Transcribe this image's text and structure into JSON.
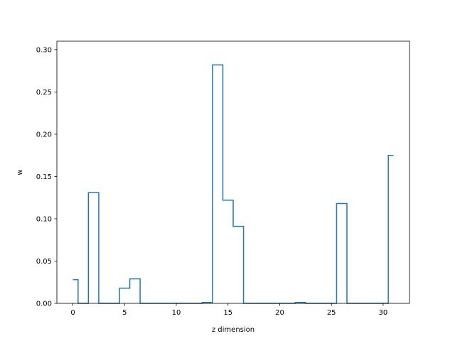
{
  "chart_data": {
    "type": "line",
    "drawstyle": "steps-mid",
    "xlabel": "z dimension",
    "ylabel": "w",
    "xlim": [
      -1.55,
      32.55
    ],
    "ylim": [
      0.0,
      0.31
    ],
    "xticks": [
      0,
      5,
      10,
      15,
      20,
      25,
      30
    ],
    "yticks": [
      0.0,
      0.05,
      0.1,
      0.15,
      0.2,
      0.25,
      0.3
    ],
    "ytick_labels": [
      "0.00",
      "0.05",
      "0.10",
      "0.15",
      "0.20",
      "0.25",
      "0.30"
    ],
    "grid": false,
    "color": "#1f77b4",
    "series": [
      {
        "x": [
          0,
          1,
          2,
          3,
          4,
          5,
          6,
          7,
          8,
          9,
          10,
          11,
          12,
          13,
          14,
          15,
          16,
          17,
          18,
          19,
          20,
          21,
          22,
          23,
          24,
          25,
          26,
          27,
          28,
          29,
          30,
          31
        ],
        "values": [
          0.028,
          0.0,
          0.131,
          0.0,
          0.0,
          0.018,
          0.029,
          0.0,
          0.0,
          0.0,
          0.0,
          0.0,
          0.0,
          0.001,
          0.282,
          0.122,
          0.091,
          0.0,
          0.0,
          0.0,
          0.0,
          0.0,
          0.001,
          0.0,
          0.0,
          0.0,
          0.118,
          0.0,
          0.0,
          0.0,
          0.0,
          0.175
        ]
      }
    ]
  }
}
